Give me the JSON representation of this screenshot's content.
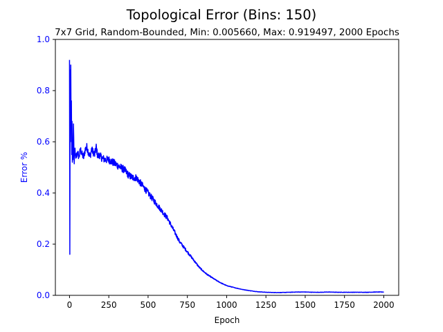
{
  "chart_data": {
    "type": "line",
    "title": "Topological Error (Bins: 150)",
    "subtitle": "7x7 Grid, Random-Bounded, Min: 0.005660, Max: 0.919497, 2000 Epochs",
    "xlabel": "Epoch",
    "ylabel": "Error %",
    "xlim": [
      -90,
      2095
    ],
    "ylim": [
      0.0,
      1.0
    ],
    "xticks": [
      0,
      250,
      500,
      750,
      1000,
      1250,
      1500,
      1750,
      2000
    ],
    "xtick_labels": [
      "0",
      "250",
      "500",
      "750",
      "1000",
      "1250",
      "1500",
      "1750",
      "2000"
    ],
    "yticks": [
      0.0,
      0.2,
      0.4,
      0.6,
      0.8,
      1.0
    ],
    "ytick_labels": [
      "0.0",
      "0.2",
      "0.4",
      "0.6",
      "0.8",
      "1.0"
    ],
    "grid": false,
    "legend": "none",
    "series_color": "#0000ff",
    "ylabel_color": "#0000ff",
    "series": [
      {
        "x": [
          0,
          2,
          4,
          6,
          8,
          10,
          12,
          14,
          16,
          18,
          20,
          22,
          25,
          30,
          35,
          40,
          50,
          60,
          70,
          80,
          90,
          100,
          110,
          120,
          130,
          140,
          150,
          160,
          170,
          180,
          190,
          200,
          225,
          250,
          275,
          300,
          325,
          350,
          375,
          400,
          425,
          450,
          475,
          500,
          525,
          550,
          575,
          600,
          625,
          650,
          675,
          700,
          725,
          750,
          775,
          800,
          825,
          850,
          875,
          900,
          925,
          950,
          975,
          1000,
          1050,
          1100,
          1150,
          1200,
          1250,
          1300,
          1350,
          1400,
          1450,
          1500,
          1550,
          1600,
          1650,
          1700,
          1750,
          1800,
          1850,
          1900,
          1950,
          2000
        ],
        "y": [
          0.92,
          0.16,
          0.88,
          0.6,
          0.9,
          0.65,
          0.76,
          0.55,
          0.68,
          0.52,
          0.58,
          0.53,
          0.67,
          0.51,
          0.57,
          0.53,
          0.56,
          0.54,
          0.57,
          0.55,
          0.54,
          0.57,
          0.58,
          0.56,
          0.54,
          0.57,
          0.56,
          0.55,
          0.58,
          0.54,
          0.55,
          0.54,
          0.53,
          0.53,
          0.52,
          0.51,
          0.5,
          0.49,
          0.47,
          0.46,
          0.46,
          0.44,
          0.42,
          0.4,
          0.38,
          0.36,
          0.34,
          0.32,
          0.3,
          0.27,
          0.24,
          0.21,
          0.19,
          0.17,
          0.15,
          0.13,
          0.11,
          0.095,
          0.082,
          0.072,
          0.062,
          0.053,
          0.045,
          0.038,
          0.03,
          0.023,
          0.018,
          0.014,
          0.012,
          0.011,
          0.011,
          0.012,
          0.013,
          0.013,
          0.012,
          0.012,
          0.013,
          0.012,
          0.012,
          0.012,
          0.012,
          0.012,
          0.013,
          0.013
        ]
      }
    ]
  }
}
